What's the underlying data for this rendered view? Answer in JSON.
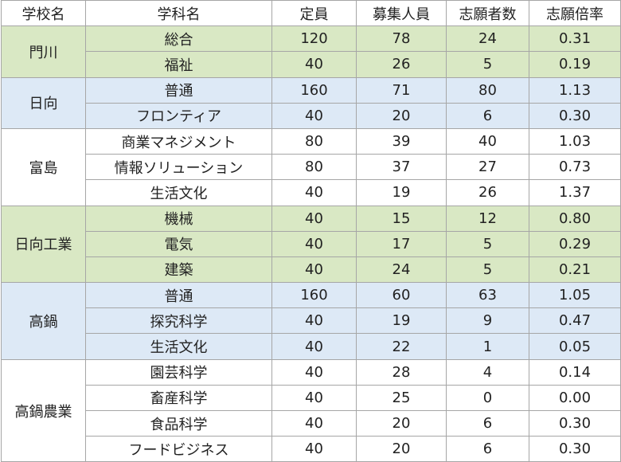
{
  "headers": [
    "学校名",
    "学科名",
    "定員",
    "募集人員",
    "志願者数",
    "志願倍率"
  ],
  "groups": [
    {
      "school": "門川",
      "color": "#d9e8c4",
      "rows": [
        {
          "dept": "総合",
          "capacity": "120",
          "recruit": "78",
          "applicants": "24",
          "ratio": "0.31"
        },
        {
          "dept": "福祉",
          "capacity": "40",
          "recruit": "26",
          "applicants": "5",
          "ratio": "0.19"
        }
      ]
    },
    {
      "school": "日向",
      "color": "#dde9f6",
      "rows": [
        {
          "dept": "普通",
          "capacity": "160",
          "recruit": "71",
          "applicants": "80",
          "ratio": "1.13"
        },
        {
          "dept": "フロンティア",
          "capacity": "40",
          "recruit": "20",
          "applicants": "6",
          "ratio": "0.30"
        }
      ]
    },
    {
      "school": "富島",
      "color": "#ffffff",
      "rows": [
        {
          "dept": "商業マネジメント",
          "capacity": "80",
          "recruit": "39",
          "applicants": "40",
          "ratio": "1.03"
        },
        {
          "dept": "情報ソリューション",
          "capacity": "80",
          "recruit": "37",
          "applicants": "27",
          "ratio": "0.73"
        },
        {
          "dept": "生活文化",
          "capacity": "40",
          "recruit": "19",
          "applicants": "26",
          "ratio": "1.37"
        }
      ]
    },
    {
      "school": "日向工業",
      "color": "#d9e8c4",
      "rows": [
        {
          "dept": "機械",
          "capacity": "40",
          "recruit": "15",
          "applicants": "12",
          "ratio": "0.80"
        },
        {
          "dept": "電気",
          "capacity": "40",
          "recruit": "17",
          "applicants": "5",
          "ratio": "0.29"
        },
        {
          "dept": "建築",
          "capacity": "40",
          "recruit": "24",
          "applicants": "5",
          "ratio": "0.21"
        }
      ]
    },
    {
      "school": "高鍋",
      "color": "#dde9f6",
      "rows": [
        {
          "dept": "普通",
          "capacity": "160",
          "recruit": "60",
          "applicants": "63",
          "ratio": "1.05"
        },
        {
          "dept": "探究科学",
          "capacity": "40",
          "recruit": "19",
          "applicants": "9",
          "ratio": "0.47"
        },
        {
          "dept": "生活文化",
          "capacity": "40",
          "recruit": "22",
          "applicants": "1",
          "ratio": "0.05"
        }
      ]
    },
    {
      "school": "高鍋農業",
      "color": "#ffffff",
      "rows": [
        {
          "dept": "園芸科学",
          "capacity": "40",
          "recruit": "28",
          "applicants": "4",
          "ratio": "0.14"
        },
        {
          "dept": "畜産科学",
          "capacity": "40",
          "recruit": "25",
          "applicants": "0",
          "ratio": "0.00"
        },
        {
          "dept": "食品科学",
          "capacity": "40",
          "recruit": "20",
          "applicants": "6",
          "ratio": "0.30"
        },
        {
          "dept": "フードビジネス",
          "capacity": "40",
          "recruit": "20",
          "applicants": "6",
          "ratio": "0.30"
        }
      ]
    }
  ]
}
